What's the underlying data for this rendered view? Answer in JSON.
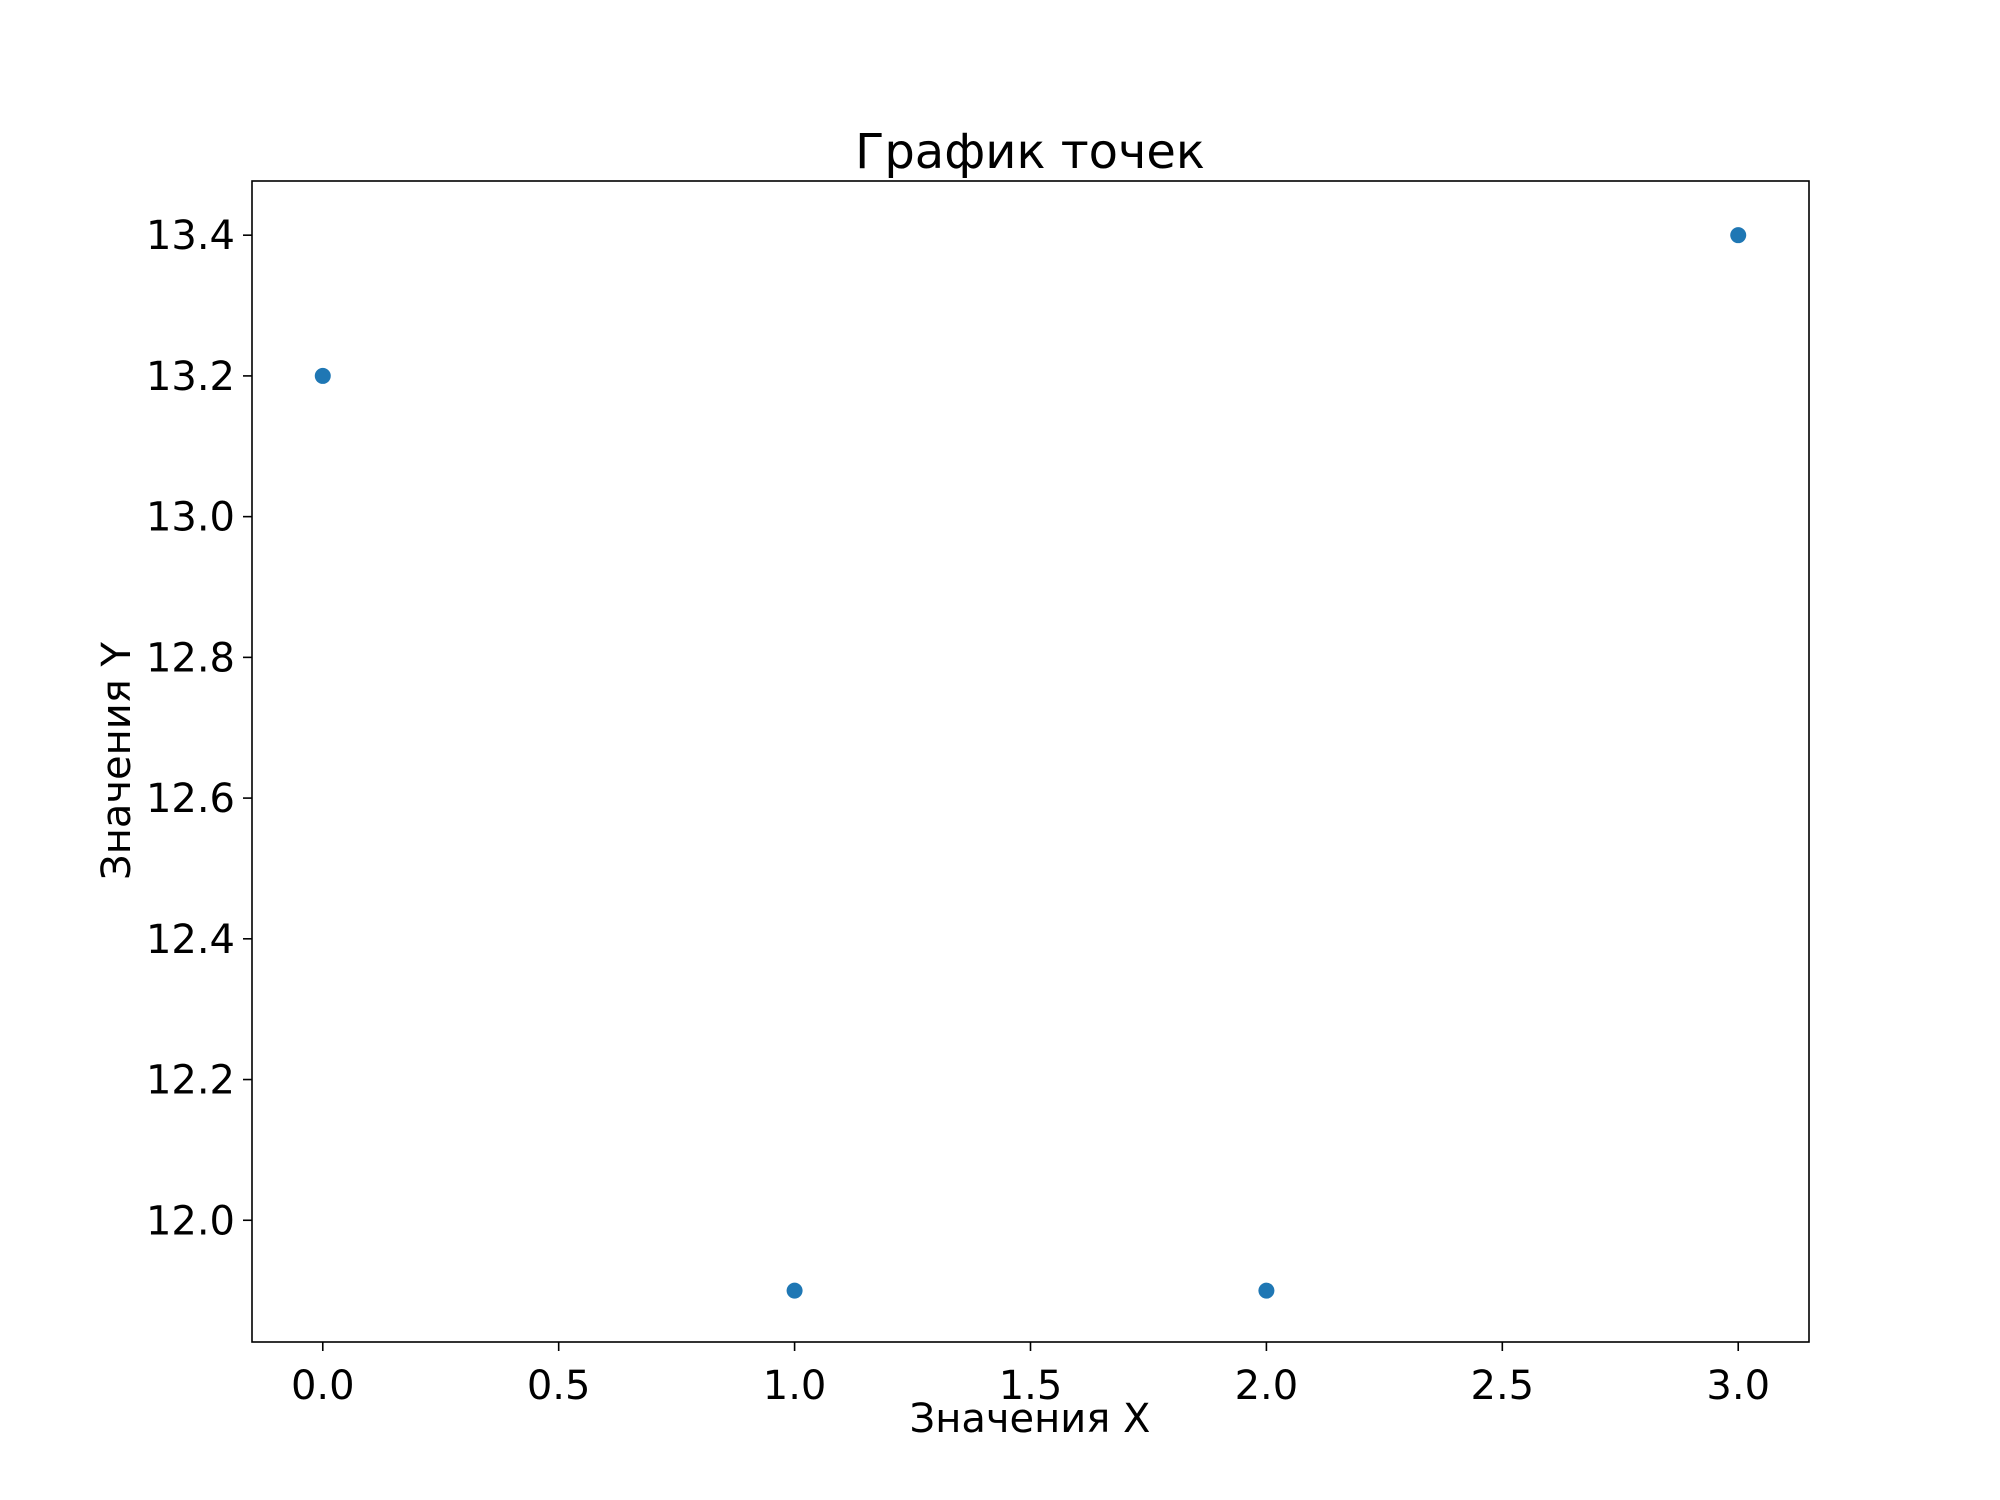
{
  "chart_data": {
    "type": "scatter",
    "title": "График точек",
    "xlabel": "Значения X",
    "ylabel": "Значения Y",
    "xlim": [
      -0.15,
      3.15
    ],
    "ylim": [
      11.827,
      13.477
    ],
    "xticks": [
      0.0,
      0.5,
      1.0,
      1.5,
      2.0,
      2.5,
      3.0
    ],
    "xtick_labels": [
      "0.0",
      "0.5",
      "1.0",
      "1.5",
      "2.0",
      "2.5",
      "3.0"
    ],
    "yticks": [
      12.0,
      12.2,
      12.4,
      12.6,
      12.8,
      13.0,
      13.2,
      13.4
    ],
    "ytick_labels": [
      "12.0",
      "12.2",
      "12.4",
      "12.6",
      "12.8",
      "13.0",
      "13.2",
      "13.4"
    ],
    "grid": false,
    "series": [
      {
        "x": [
          0,
          1,
          2,
          3
        ],
        "y": [
          13.2,
          11.9,
          11.9,
          13.4
        ],
        "color": "#1f77b4"
      }
    ]
  }
}
